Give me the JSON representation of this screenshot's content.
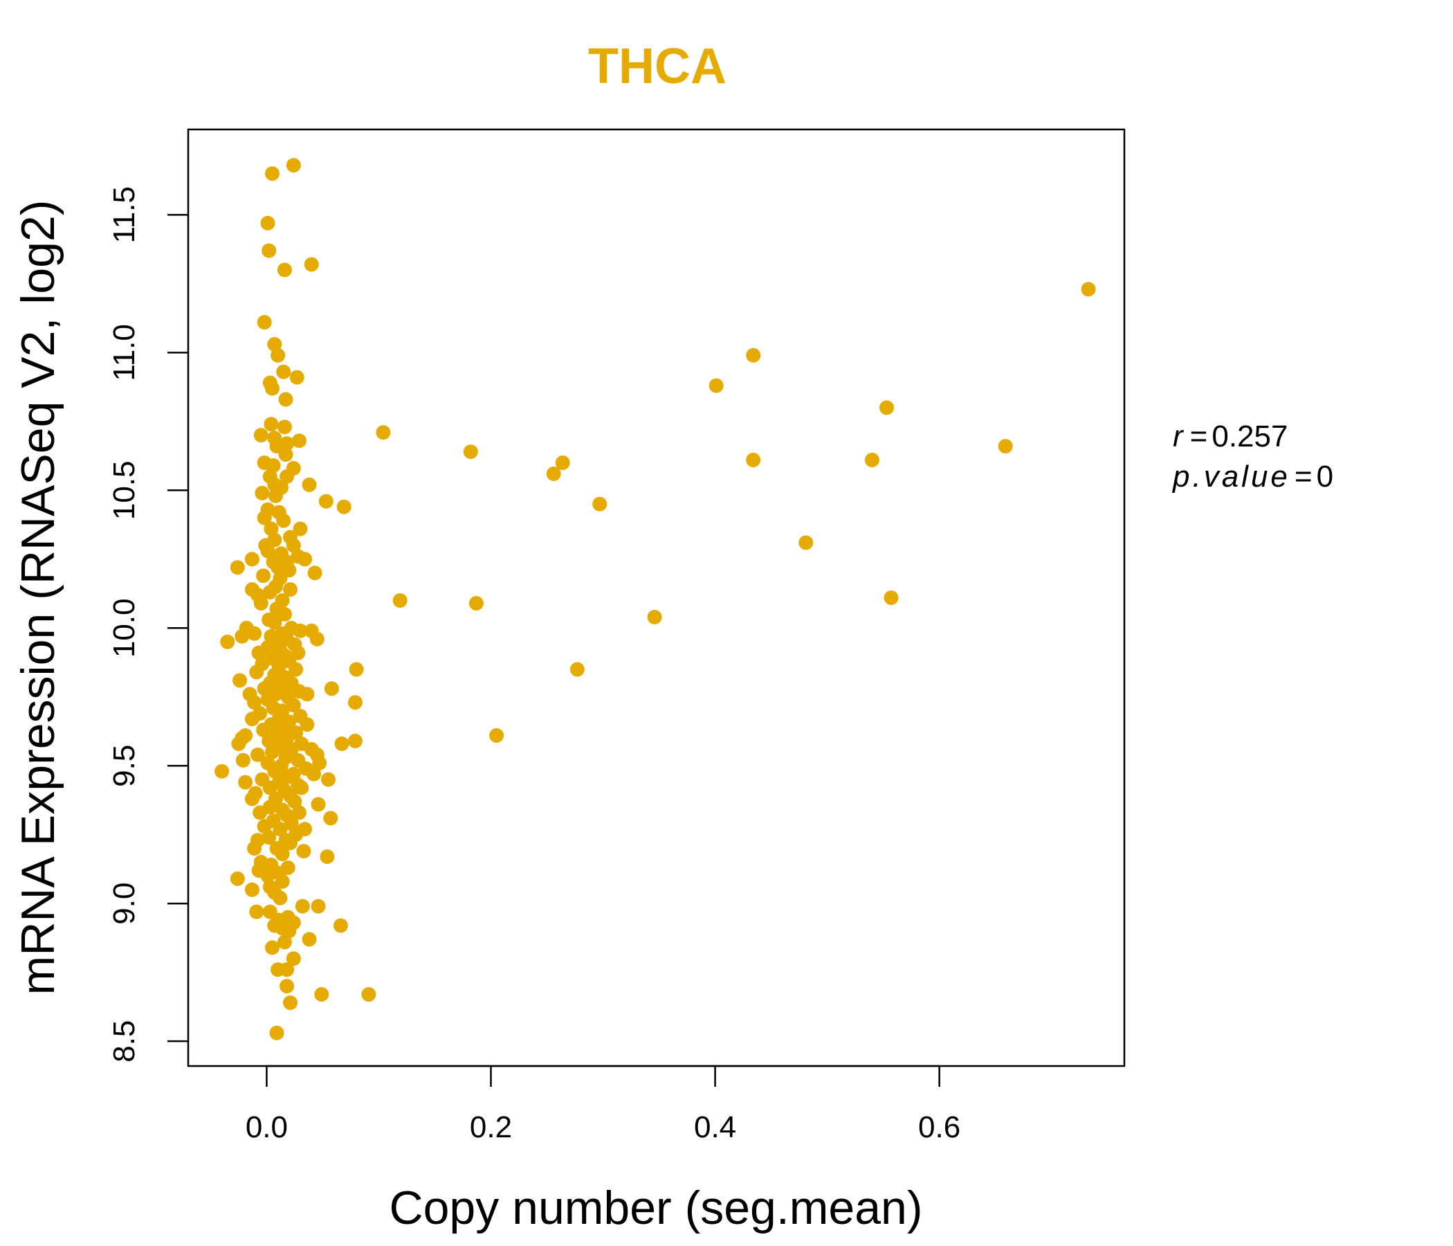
{
  "chart_data": {
    "type": "scatter",
    "title": "THCA",
    "xlabel": "Copy number (seg.mean)",
    "ylabel": "mRNA Expression (RNASeq V2, log2)",
    "xlim": [
      -0.07,
      0.765
    ],
    "ylim": [
      8.41,
      11.81
    ],
    "xticks": [
      0.0,
      0.2,
      0.4,
      0.6
    ],
    "xtick_labels": [
      "0.0",
      "0.2",
      "0.4",
      "0.6"
    ],
    "yticks": [
      8.5,
      9.0,
      9.5,
      10.0,
      10.5,
      11.0,
      11.5
    ],
    "ytick_labels": [
      "8.5",
      "9.0",
      "9.5",
      "10.0",
      "10.5",
      "11.0",
      "11.5"
    ],
    "point_color": "#E6AB02",
    "grid": false,
    "stats": {
      "r_label": "r",
      "r_value": "0.257",
      "p_label": "p.value",
      "p_value": "0"
    },
    "points": [
      [
        0.005,
        11.65
      ],
      [
        0.024,
        11.68
      ],
      [
        0.001,
        11.47
      ],
      [
        0.002,
        11.37
      ],
      [
        0.016,
        11.3
      ],
      [
        0.04,
        11.32
      ],
      [
        -0.002,
        11.11
      ],
      [
        0.007,
        11.03
      ],
      [
        0.01,
        10.99
      ],
      [
        0.015,
        10.93
      ],
      [
        0.027,
        10.91
      ],
      [
        0.003,
        10.89
      ],
      [
        0.005,
        10.87
      ],
      [
        0.017,
        10.83
      ],
      [
        0.004,
        10.74
      ],
      [
        0.016,
        10.73
      ],
      [
        -0.005,
        10.7
      ],
      [
        0.007,
        10.69
      ],
      [
        0.018,
        10.67
      ],
      [
        0.029,
        10.68
      ],
      [
        0.009,
        10.66
      ],
      [
        0.017,
        10.63
      ],
      [
        -0.002,
        10.6
      ],
      [
        0.006,
        10.59
      ],
      [
        0.024,
        10.58
      ],
      [
        0.003,
        10.55
      ],
      [
        0.018,
        10.55
      ],
      [
        0.038,
        10.52
      ],
      [
        0.007,
        10.52
      ],
      [
        0.013,
        10.51
      ],
      [
        -0.004,
        10.49
      ],
      [
        0.008,
        10.48
      ],
      [
        0.053,
        10.46
      ],
      [
        0.069,
        10.44
      ],
      [
        0.001,
        10.43
      ],
      [
        0.011,
        10.42
      ],
      [
        -0.002,
        10.4
      ],
      [
        0.015,
        10.39
      ],
      [
        0.03,
        10.36
      ],
      [
        0.004,
        10.36
      ],
      [
        0.021,
        10.33
      ],
      [
        0.007,
        10.32
      ],
      [
        -0.001,
        10.3
      ],
      [
        0.024,
        10.3
      ],
      [
        0.001,
        10.28
      ],
      [
        0.013,
        10.27
      ],
      [
        0.028,
        10.26
      ],
      [
        0.034,
        10.25
      ],
      [
        -0.013,
        10.25
      ],
      [
        0.006,
        10.24
      ],
      [
        0.018,
        10.24
      ],
      [
        -0.026,
        10.22
      ],
      [
        0.01,
        10.22
      ],
      [
        0.02,
        10.21
      ],
      [
        0.043,
        10.2
      ],
      [
        -0.003,
        10.19
      ],
      [
        0.012,
        10.18
      ],
      [
        0.008,
        10.15
      ],
      [
        0.021,
        10.14
      ],
      [
        -0.013,
        10.14
      ],
      [
        0.003,
        10.13
      ],
      [
        -0.008,
        10.12
      ],
      [
        0.014,
        10.1
      ],
      [
        -0.005,
        10.09
      ],
      [
        0.009,
        10.07
      ],
      [
        0.016,
        10.05
      ],
      [
        0.002,
        10.03
      ],
      [
        0.007,
        10.02
      ],
      [
        -0.018,
        10.0
      ],
      [
        0.022,
        10.0
      ],
      [
        0.03,
        9.99
      ],
      [
        0.04,
        9.99
      ],
      [
        -0.011,
        9.98
      ],
      [
        0.014,
        9.98
      ],
      [
        0.004,
        9.97
      ],
      [
        -0.022,
        9.97
      ],
      [
        0.018,
        9.96
      ],
      [
        0.045,
        9.96
      ],
      [
        -0.035,
        9.95
      ],
      [
        0.009,
        9.95
      ],
      [
        0.025,
        9.94
      ],
      [
        0.001,
        9.93
      ],
      [
        0.012,
        9.92
      ],
      [
        0.028,
        9.91
      ],
      [
        -0.007,
        9.91
      ],
      [
        0.016,
        9.9
      ],
      [
        0.005,
        9.89
      ],
      [
        0.02,
        9.88
      ],
      [
        -0.004,
        9.87
      ],
      [
        0.011,
        9.86
      ],
      [
        0.026,
        9.85
      ],
      [
        0.08,
        9.85
      ],
      [
        -0.009,
        9.84
      ],
      [
        0.007,
        9.83
      ],
      [
        0.017,
        9.82
      ],
      [
        -0.024,
        9.81
      ],
      [
        0.003,
        9.8
      ],
      [
        0.022,
        9.8
      ],
      [
        0.013,
        9.79
      ],
      [
        -0.002,
        9.78
      ],
      [
        0.058,
        9.78
      ],
      [
        0.029,
        9.77
      ],
      [
        0.008,
        9.76
      ],
      [
        -0.015,
        9.76
      ],
      [
        0.036,
        9.76
      ],
      [
        0.019,
        9.75
      ],
      [
        0.001,
        9.74
      ],
      [
        -0.011,
        9.73
      ],
      [
        0.079,
        9.73
      ],
      [
        0.024,
        9.72
      ],
      [
        0.006,
        9.71
      ],
      [
        0.014,
        9.7
      ],
      [
        -0.006,
        9.69
      ],
      [
        0.03,
        9.68
      ],
      [
        0.011,
        9.67
      ],
      [
        -0.013,
        9.67
      ],
      [
        0.02,
        9.66
      ],
      [
        0.004,
        9.65
      ],
      [
        0.036,
        9.65
      ],
      [
        0.016,
        9.64
      ],
      [
        -0.003,
        9.63
      ],
      [
        0.026,
        9.62
      ],
      [
        0.009,
        9.61
      ],
      [
        -0.019,
        9.61
      ],
      [
        -0.022,
        9.6
      ],
      [
        0.018,
        9.6
      ],
      [
        0.002,
        9.59
      ],
      [
        0.031,
        9.58
      ],
      [
        0.067,
        9.58
      ],
      [
        0.079,
        9.59
      ],
      [
        -0.025,
        9.58
      ],
      [
        0.012,
        9.57
      ],
      [
        0.022,
        9.56
      ],
      [
        0.04,
        9.56
      ],
      [
        0.005,
        9.55
      ],
      [
        0.045,
        9.54
      ],
      [
        -0.008,
        9.54
      ],
      [
        0.017,
        9.53
      ],
      [
        0.028,
        9.52
      ],
      [
        -0.021,
        9.52
      ],
      [
        0.001,
        9.51
      ],
      [
        0.047,
        9.51
      ],
      [
        0.013,
        9.5
      ],
      [
        0.035,
        9.49
      ],
      [
        0.007,
        9.48
      ],
      [
        -0.04,
        9.48
      ],
      [
        0.024,
        9.47
      ],
      [
        0.042,
        9.47
      ],
      [
        0.019,
        9.46
      ],
      [
        0.055,
        9.45
      ],
      [
        -0.004,
        9.45
      ],
      [
        0.011,
        9.44
      ],
      [
        -0.019,
        9.44
      ],
      [
        0.028,
        9.43
      ],
      [
        0.003,
        9.42
      ],
      [
        0.016,
        9.41
      ],
      [
        0.031,
        9.42
      ],
      [
        -0.01,
        9.4
      ],
      [
        0.021,
        9.39
      ],
      [
        0.008,
        9.38
      ],
      [
        -0.013,
        9.38
      ],
      [
        0.025,
        9.37
      ],
      [
        0.046,
        9.36
      ],
      [
        0.003,
        9.35
      ],
      [
        0.014,
        9.34
      ],
      [
        0.029,
        9.33
      ],
      [
        -0.006,
        9.33
      ],
      [
        0.018,
        9.32
      ],
      [
        0.057,
        9.31
      ],
      [
        0.006,
        9.3
      ],
      [
        0.022,
        9.29
      ],
      [
        -0.002,
        9.28
      ],
      [
        0.012,
        9.27
      ],
      [
        0.034,
        9.27
      ],
      [
        0.026,
        9.25
      ],
      [
        0.002,
        9.24
      ],
      [
        -0.008,
        9.23
      ],
      [
        0.017,
        9.23
      ],
      [
        0.021,
        9.22
      ],
      [
        -0.011,
        9.2
      ],
      [
        0.009,
        9.2
      ],
      [
        0.033,
        9.19
      ],
      [
        0.014,
        9.18
      ],
      [
        0.054,
        9.17
      ],
      [
        -0.005,
        9.15
      ],
      [
        0.004,
        9.14
      ],
      [
        0.019,
        9.13
      ],
      [
        -0.007,
        9.12
      ],
      [
        0.011,
        9.11
      ],
      [
        0.001,
        9.1
      ],
      [
        -0.026,
        9.09
      ],
      [
        0.014,
        9.08
      ],
      [
        0.003,
        9.06
      ],
      [
        -0.013,
        9.05
      ],
      [
        0.007,
        9.04
      ],
      [
        0.012,
        9.02
      ],
      [
        0.032,
        8.99
      ],
      [
        0.046,
        8.99
      ],
      [
        -0.009,
        8.97
      ],
      [
        0.003,
        8.97
      ],
      [
        0.019,
        8.95
      ],
      [
        0.011,
        8.94
      ],
      [
        0.024,
        8.93
      ],
      [
        0.066,
        8.92
      ],
      [
        0.007,
        8.92
      ],
      [
        0.014,
        8.91
      ],
      [
        0.02,
        8.9
      ],
      [
        0.038,
        8.87
      ],
      [
        0.016,
        8.86
      ],
      [
        0.005,
        8.84
      ],
      [
        0.024,
        8.8
      ],
      [
        0.01,
        8.76
      ],
      [
        0.018,
        8.76
      ],
      [
        0.018,
        8.7
      ],
      [
        0.021,
        8.64
      ],
      [
        0.049,
        8.67
      ],
      [
        0.091,
        8.67
      ],
      [
        0.009,
        8.53
      ],
      [
        0.104,
        10.71
      ],
      [
        0.182,
        10.64
      ],
      [
        0.256,
        10.56
      ],
      [
        0.264,
        10.6
      ],
      [
        0.297,
        10.45
      ],
      [
        0.119,
        10.1
      ],
      [
        0.187,
        10.09
      ],
      [
        0.346,
        10.04
      ],
      [
        0.277,
        9.85
      ],
      [
        0.205,
        9.61
      ],
      [
        0.401,
        10.88
      ],
      [
        0.434,
        10.99
      ],
      [
        0.434,
        10.61
      ],
      [
        0.481,
        10.31
      ],
      [
        0.54,
        10.61
      ],
      [
        0.553,
        10.8
      ],
      [
        0.557,
        10.11
      ],
      [
        0.659,
        10.66
      ],
      [
        0.733,
        11.23
      ]
    ]
  }
}
